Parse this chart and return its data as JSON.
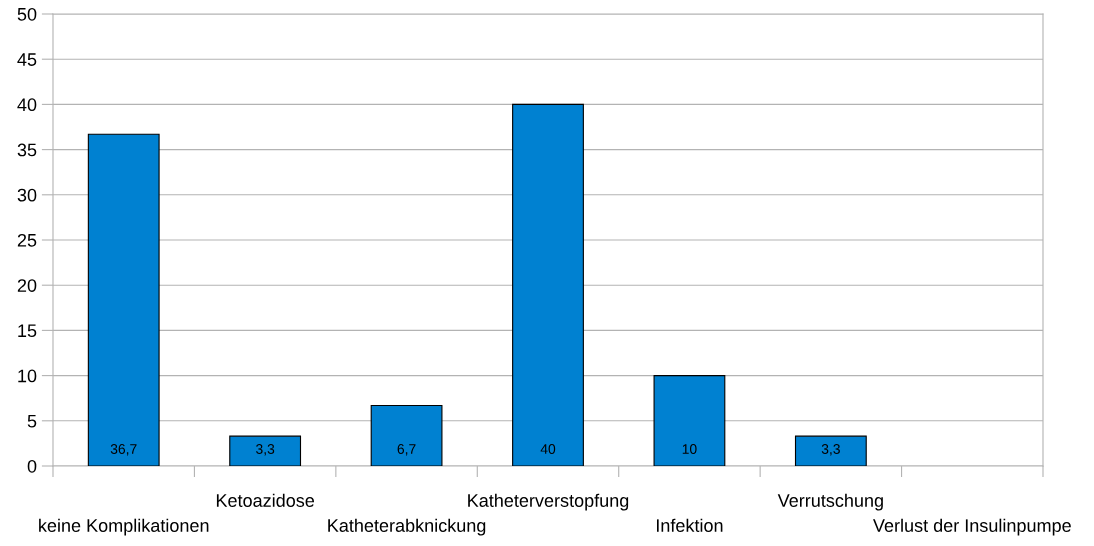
{
  "chart_data": {
    "type": "bar",
    "categories": [
      "keine Komplikationen",
      "Ketoazidose",
      "Katheterabknickung",
      "Katheterverstopfung",
      "Infektion",
      "Verrutschung",
      "Verlust der Insulinpumpe"
    ],
    "values": [
      36.7,
      3.3,
      6.7,
      40,
      10,
      3.3,
      null
    ],
    "value_labels": [
      "36,7",
      "3,3",
      "6,7",
      "40",
      "10",
      "3,3",
      null
    ],
    "color": "#0081d1",
    "ylim": [
      0,
      50
    ],
    "yticks": [
      0,
      5,
      10,
      15,
      20,
      25,
      30,
      35,
      40,
      45,
      50
    ],
    "grid": "y",
    "legend": false
  }
}
